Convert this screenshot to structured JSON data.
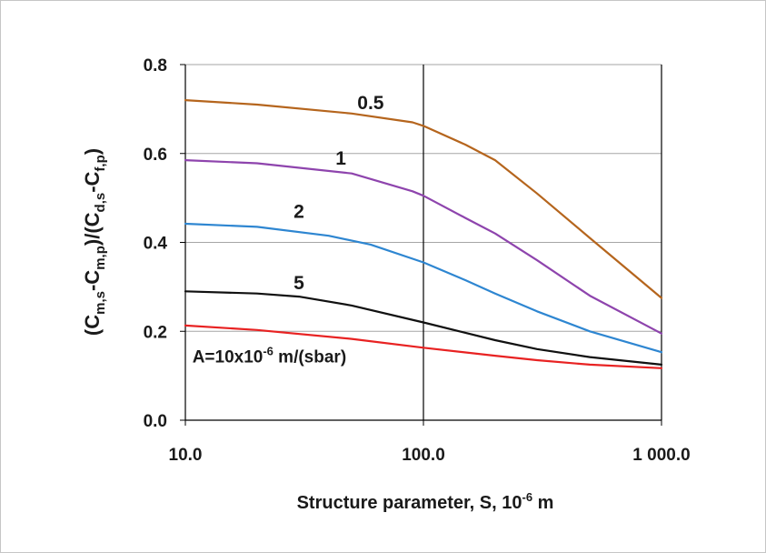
{
  "chart_data": {
    "type": "line",
    "xscale": "log",
    "xlim": [
      10,
      1000
    ],
    "ylim": [
      0,
      0.8
    ],
    "xticks": [
      {
        "value": 10,
        "label": "10.0"
      },
      {
        "value": 100,
        "label": "100.0"
      },
      {
        "value": 1000,
        "label": "1 000.0"
      }
    ],
    "yticks": [
      {
        "value": 0,
        "label": "0.0"
      },
      {
        "value": 0.2,
        "label": "0.2"
      },
      {
        "value": 0.4,
        "label": "0.4"
      },
      {
        "value": 0.6,
        "label": "0.6"
      },
      {
        "value": 0.8,
        "label": "0.8"
      }
    ],
    "xlabel": {
      "pre": "Structure parameter, S, 10",
      "sup": "-6",
      "post": " m"
    },
    "ylabel": {
      "parts": [
        {
          "t": "(C",
          "s": ""
        },
        {
          "t": "m,s",
          "s": "sub"
        },
        {
          "t": "-C",
          "s": ""
        },
        {
          "t": "m,p",
          "s": "sub"
        },
        {
          "t": ")/(C",
          "s": ""
        },
        {
          "t": "d,s",
          "s": "sub"
        },
        {
          "t": "-C",
          "s": ""
        },
        {
          "t": "f,p",
          "s": "sub"
        },
        {
          "t": ")",
          "s": ""
        }
      ]
    },
    "grid": "horizontal",
    "series": [
      {
        "name": "0.5",
        "color": "#b5651d",
        "x": [
          10,
          20,
          50,
          90,
          100,
          150,
          200,
          300,
          500,
          1000
        ],
        "y": [
          0.72,
          0.71,
          0.69,
          0.67,
          0.662,
          0.62,
          0.585,
          0.51,
          0.41,
          0.275
        ]
      },
      {
        "name": "1",
        "color": "#8e44ad",
        "x": [
          10,
          20,
          50,
          90,
          100,
          150,
          200,
          300,
          500,
          1000
        ],
        "y": [
          0.585,
          0.578,
          0.555,
          0.515,
          0.505,
          0.455,
          0.42,
          0.36,
          0.28,
          0.195
        ]
      },
      {
        "name": "2",
        "color": "#2e86d1",
        "x": [
          10,
          20,
          40,
          60,
          100,
          150,
          200,
          300,
          500,
          1000
        ],
        "y": [
          0.442,
          0.435,
          0.415,
          0.395,
          0.355,
          0.315,
          0.285,
          0.245,
          0.2,
          0.153
        ]
      },
      {
        "name": "5",
        "color": "#111111",
        "x": [
          10,
          20,
          30,
          50,
          100,
          200,
          300,
          500,
          1000
        ],
        "y": [
          0.29,
          0.285,
          0.278,
          0.258,
          0.22,
          0.18,
          0.16,
          0.142,
          0.125
        ]
      },
      {
        "name": "",
        "color": "#e82222",
        "x": [
          10,
          20,
          50,
          100,
          200,
          300,
          500,
          1000
        ],
        "y": [
          0.213,
          0.203,
          0.183,
          0.163,
          0.145,
          0.135,
          0.125,
          0.117
        ]
      }
    ],
    "annotations": [
      {
        "kind": "series-label",
        "text": "0.5",
        "x": 60,
        "y": 0.7
      },
      {
        "kind": "series-label",
        "text": "1",
        "x": 45,
        "y": 0.575
      },
      {
        "kind": "series-label",
        "text": "2",
        "x": 30,
        "y": 0.455
      },
      {
        "kind": "series-label",
        "text": "5",
        "x": 30,
        "y": 0.295
      },
      {
        "kind": "note",
        "pre": "A=10x10",
        "sup": "-6",
        "post": " m/(sbar)",
        "x": 10.7,
        "y": 0.13
      }
    ]
  }
}
